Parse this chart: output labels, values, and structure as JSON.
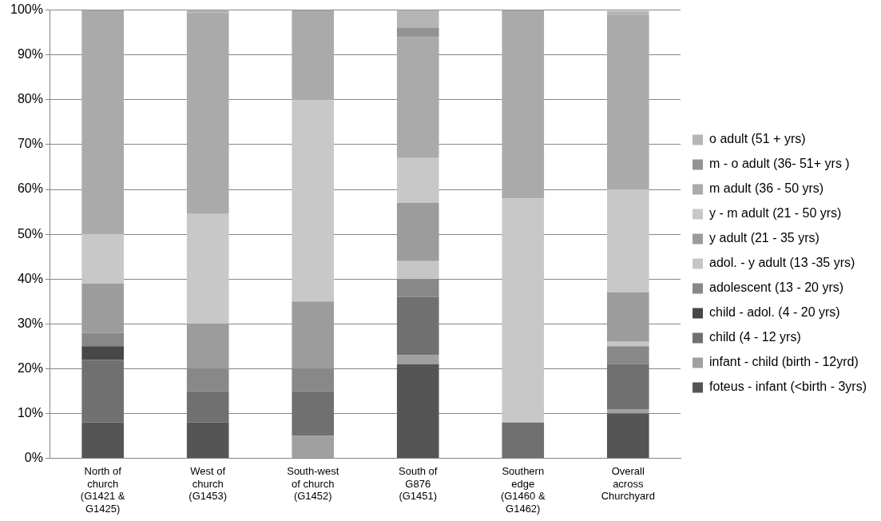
{
  "chart_data": {
    "type": "bar",
    "stacked": true,
    "categories": [
      "North of church (G1421 & G1425)",
      "West of church (G1453)",
      "South-west of church (G1452)",
      "South of G876 (G1451)",
      "Southern edge (G1460 & G1462)",
      "Overall across Churchyard"
    ],
    "series": [
      {
        "name": "foteus - infant (<birth - 3yrs)",
        "color": "#555555",
        "values": [
          8,
          8,
          0,
          21,
          0,
          10
        ]
      },
      {
        "name": "infant - child (birth - 12yrd)",
        "color": "#a0a0a0",
        "values": [
          0,
          0,
          5,
          2,
          0,
          1
        ]
      },
      {
        "name": "child (4 - 12 yrs)",
        "color": "#707070",
        "values": [
          14,
          7,
          10,
          13,
          8,
          10
        ]
      },
      {
        "name": "child - adol. (4 - 20 yrs)",
        "color": "#474747",
        "values": [
          3,
          0,
          0,
          0,
          0,
          0
        ]
      },
      {
        "name": "adolescent (13 - 20 yrs)",
        "color": "#888888",
        "values": [
          3,
          5,
          5,
          4,
          0,
          4
        ]
      },
      {
        "name": "adol. - y adult (13 -35 yrs)",
        "color": "#c6c6c6",
        "values": [
          0,
          0,
          0,
          4,
          0,
          1
        ]
      },
      {
        "name": "y adult (21 - 35 yrs)",
        "color": "#9c9c9c",
        "values": [
          11,
          10,
          15,
          13,
          0,
          11
        ]
      },
      {
        "name": "y - m adult (21 - 50 yrs)",
        "color": "#c8c8c8",
        "values": [
          11,
          24.5,
          45,
          10,
          50,
          23
        ]
      },
      {
        "name": "m adult (36 - 50 yrs)",
        "color": "#aaaaaa",
        "values": [
          50,
          44.7,
          20,
          27,
          42,
          39
        ]
      },
      {
        "name": "m - o adult (36- 51+ yrs )",
        "color": "#939393",
        "values": [
          0,
          0,
          0,
          2,
          0,
          0
        ]
      },
      {
        "name": "o adult (51 + yrs)",
        "color": "#b5b5b5",
        "values": [
          0,
          0.8,
          0,
          4,
          0,
          0.8
        ]
      }
    ],
    "ylim": [
      0,
      100
    ],
    "yticks": [
      {
        "value": 0,
        "label": "0%"
      },
      {
        "value": 10,
        "label": "10%"
      },
      {
        "value": 20,
        "label": "20%"
      },
      {
        "value": 30,
        "label": "30%"
      },
      {
        "value": 40,
        "label": "40%"
      },
      {
        "value": 50,
        "label": "50%"
      },
      {
        "value": 60,
        "label": "60%"
      },
      {
        "value": 70,
        "label": "70%"
      },
      {
        "value": 80,
        "label": "80%"
      },
      {
        "value": 90,
        "label": "90%"
      },
      {
        "value": 100,
        "label": "100%"
      }
    ],
    "grid": "y",
    "legend": "right"
  }
}
